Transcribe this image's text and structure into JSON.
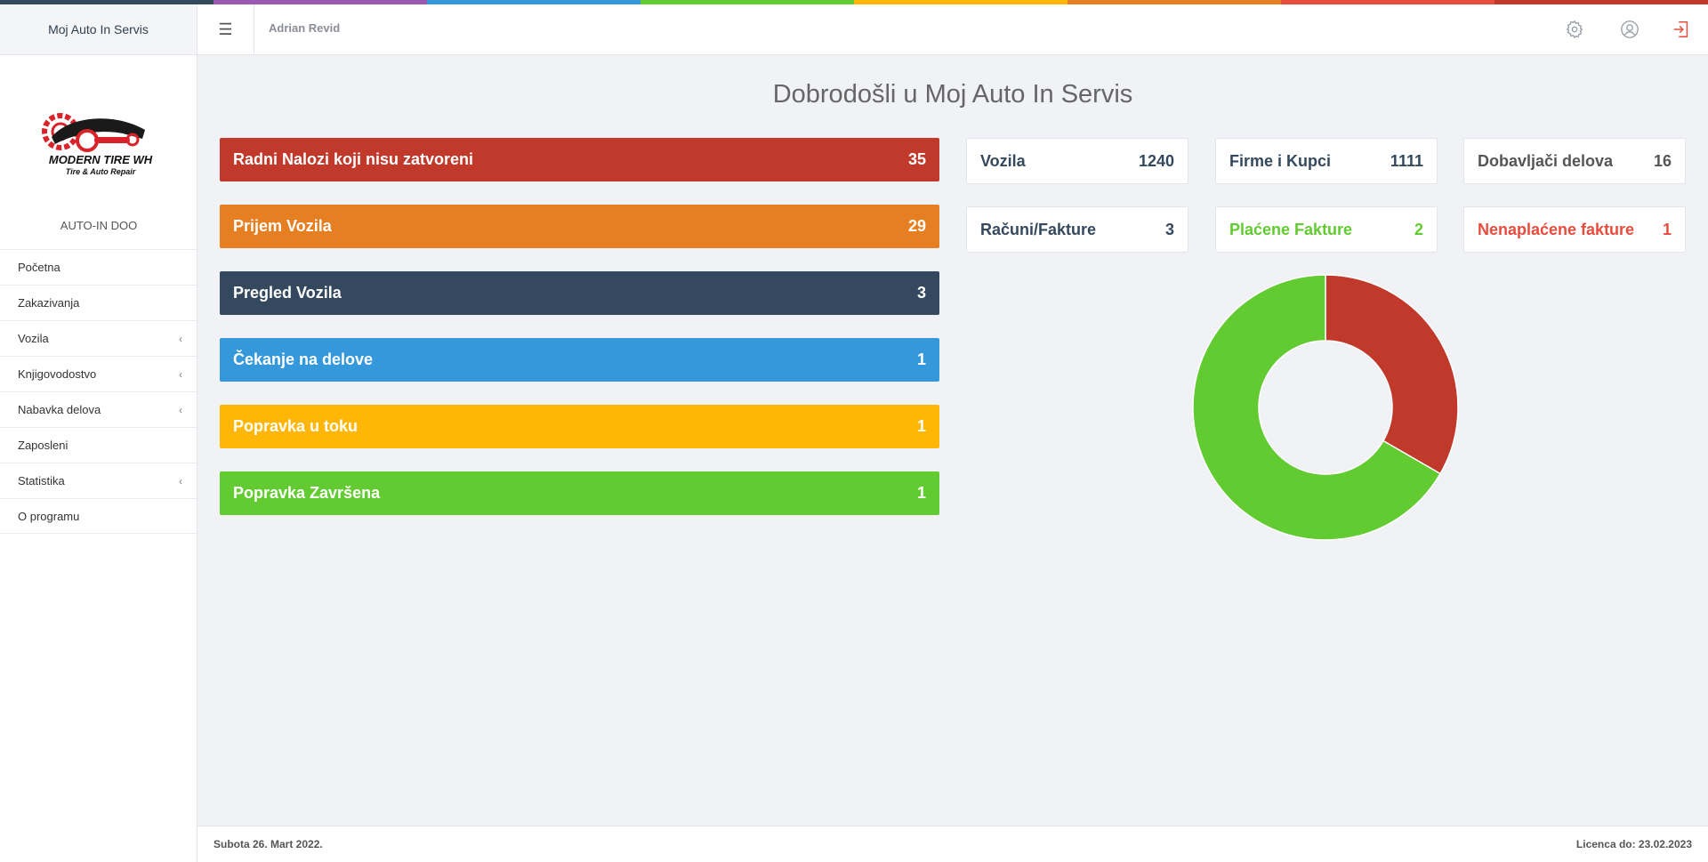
{
  "colors": {
    "stripe": [
      "#34495e",
      "#9b59b6",
      "#3498db",
      "#62cb31",
      "#ffb606",
      "#e67e22",
      "#e74c3c",
      "#c0392b"
    ],
    "red": "#c0392b",
    "orange": "#e67e22",
    "navy": "#34495e",
    "blue": "#3498db",
    "yellow": "#ffb606",
    "green": "#62cb31",
    "bright_red": "#e74c3c"
  },
  "header": {
    "app_name": "Moj Auto In Servis",
    "menu_icon": "hamburger-icon",
    "user": "Adrian Revid",
    "icons": [
      "gear-icon",
      "user-icon",
      "logout-icon"
    ]
  },
  "sidebar": {
    "logo_text_1": "MODERN TIRE WH",
    "logo_text_2": "Tire & Auto Repair",
    "company": "AUTO-IN DOO",
    "items": [
      {
        "label": "Početna",
        "has_submenu": false
      },
      {
        "label": "Zakazivanja",
        "has_submenu": false
      },
      {
        "label": "Vozila",
        "has_submenu": true
      },
      {
        "label": "Knjigovodostvo",
        "has_submenu": true
      },
      {
        "label": "Nabavka delova",
        "has_submenu": true
      },
      {
        "label": "Zaposleni",
        "has_submenu": false
      },
      {
        "label": "Statistika",
        "has_submenu": true
      },
      {
        "label": "O programu",
        "has_submenu": false
      }
    ],
    "chevron": "‹"
  },
  "main": {
    "title": "Dobrodošli u Moj Auto In Servis",
    "status_bars": [
      {
        "label": "Radni Nalozi koji nisu zatvoreni",
        "count": "35",
        "color": "#c0392b"
      },
      {
        "label": "Prijem Vozila",
        "count": "29",
        "color": "#e67e22"
      },
      {
        "label": "Pregled Vozila",
        "count": "3",
        "color": "#34495e"
      },
      {
        "label": "Čekanje na delove",
        "count": "1",
        "color": "#3498db"
      },
      {
        "label": "Popravka u toku",
        "count": "1",
        "color": "#ffb606"
      },
      {
        "label": "Popravka Završena",
        "count": "1",
        "color": "#62cb31"
      }
    ],
    "cards": [
      {
        "label": "Vozila",
        "value": "1240",
        "color": "#34495e"
      },
      {
        "label": "Firme i Kupci",
        "value": "1111",
        "color": "#34495e"
      },
      {
        "label": "Dobavljači delova",
        "value": "16",
        "color": "#555555"
      },
      {
        "label": "Računi/Fakture",
        "value": "3",
        "color": "#34495e"
      },
      {
        "label": "Plaćene Fakture",
        "value": "2",
        "color": "#62cb31"
      },
      {
        "label": "Nenaplaćene fakture",
        "value": "1",
        "color": "#e74c3c"
      }
    ]
  },
  "chart_data": {
    "type": "pie",
    "donut": true,
    "slices": [
      {
        "value": 1,
        "color": "#c0392b"
      },
      {
        "value": 2,
        "color": "#62cb31"
      }
    ]
  },
  "footer": {
    "date": "Subota 26. Mart 2022.",
    "license": "Licenca do: 23.02.2023"
  }
}
